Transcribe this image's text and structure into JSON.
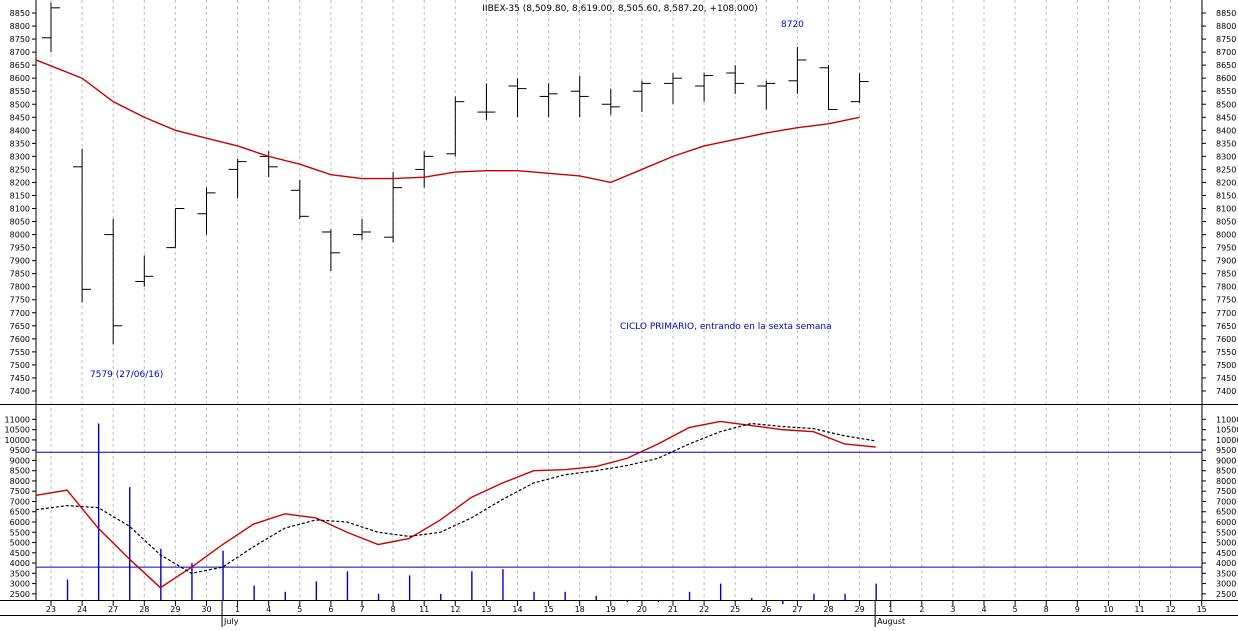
{
  "header": {
    "title": "IIBEX-35 (8,509.80, 8,619.00, 8,505.60, 8,587.20, +108.000)"
  },
  "annotations": {
    "low_label": "7579 (27/06/16)",
    "high_label": "8720",
    "cycle_label": "CICLO PRIMARIO, entrando en la sexta semana"
  },
  "colors": {
    "background": "#ffffff",
    "grid": "#bdbdbd",
    "price_bars": "#000000",
    "moving_average": "#cc0000",
    "oscillator": "#cc0000",
    "signal_line": "#000000",
    "volume": "#0000cc",
    "annotation_text": "#0000cc",
    "horizontal_levels": "#0000cc"
  },
  "chart_data": [
    {
      "type": "ohlc",
      "title": "IIBEX-35 (8,509.80, 8,619.00, 8,505.60, 8,587.20, +108.000)",
      "x_dates": [
        "23",
        "24",
        "27",
        "28",
        "29",
        "30",
        "1",
        "4",
        "5",
        "6",
        "7",
        "8",
        "11",
        "12",
        "13",
        "14",
        "15",
        "18",
        "19",
        "20",
        "21",
        "22",
        "25",
        "26",
        "27",
        "28",
        "29"
      ],
      "future_dates": [
        "1",
        "2",
        "3",
        "4",
        "5",
        "8",
        "9",
        "10",
        "11",
        "12",
        "15"
      ],
      "month_labels": [
        {
          "label": "July",
          "at_index": 6
        },
        {
          "label": "August",
          "at_index": 27
        }
      ],
      "ohlc": [
        [
          8755,
          8890,
          8700,
          8870
        ],
        [
          8260,
          8330,
          7740,
          7790
        ],
        [
          8000,
          8060,
          7579,
          7650
        ],
        [
          7820,
          7920,
          7800,
          7840
        ],
        [
          7950,
          8100,
          7950,
          8100
        ],
        [
          8080,
          8180,
          8000,
          8160
        ],
        [
          8250,
          8290,
          8140,
          8280
        ],
        [
          8300,
          8320,
          8220,
          8260
        ],
        [
          8170,
          8210,
          8060,
          8070
        ],
        [
          8010,
          8020,
          7860,
          7930
        ],
        [
          8000,
          8060,
          7980,
          8010
        ],
        [
          7990,
          8240,
          7970,
          8180
        ],
        [
          8250,
          8320,
          8180,
          8300
        ],
        [
          8310,
          8530,
          8300,
          8510
        ],
        [
          8470,
          8580,
          8440,
          8470
        ],
        [
          8570,
          8600,
          8450,
          8560
        ],
        [
          8530,
          8580,
          8450,
          8540
        ],
        [
          8550,
          8610,
          8450,
          8530
        ],
        [
          8500,
          8560,
          8460,
          8490
        ],
        [
          8550,
          8590,
          8470,
          8580
        ],
        [
          8580,
          8620,
          8500,
          8600
        ],
        [
          8570,
          8620,
          8510,
          8610
        ],
        [
          8620,
          8650,
          8540,
          8580
        ],
        [
          8570,
          8590,
          8480,
          8580
        ],
        [
          8590,
          8720,
          8540,
          8670
        ],
        [
          8640,
          8650,
          8480,
          8480
        ],
        [
          8510,
          8619,
          8505.6,
          8587.2
        ]
      ],
      "moving_average": [
        8670,
        8600,
        8510,
        8450,
        8400,
        8370,
        8340,
        8300,
        8270,
        8230,
        8215,
        8215,
        8220,
        8240,
        8245,
        8245,
        8235,
        8225,
        8200,
        8250,
        8300,
        8340,
        8365,
        8390,
        8410,
        8425,
        8450
      ],
      "yrange": [
        7350,
        8900
      ],
      "yticks": [
        7400,
        7450,
        7500,
        7550,
        7600,
        7650,
        7700,
        7750,
        7800,
        7850,
        7900,
        7950,
        8000,
        8050,
        8100,
        8150,
        8200,
        8250,
        8300,
        8350,
        8400,
        8450,
        8500,
        8550,
        8600,
        8650,
        8700,
        8750,
        8800,
        8850
      ],
      "grid": true
    },
    {
      "type": "line",
      "series": [
        {
          "values": [
            7300,
            7550,
            5700,
            4200,
            2800,
            3800,
            4900,
            5900,
            6400,
            6200,
            5500,
            4900,
            5200,
            6100,
            7200,
            7900,
            8500,
            8550,
            8700,
            9100,
            9800,
            10600,
            10900,
            10700,
            10500,
            10400,
            9800,
            9650
          ]
        },
        {
          "values": [
            6600,
            6800,
            6700,
            5800,
            4400,
            3500,
            3800,
            4800,
            5700,
            6100,
            6000,
            5500,
            5300,
            5500,
            6200,
            7100,
            7900,
            8300,
            8500,
            8750,
            9100,
            9800,
            10400,
            10800,
            10650,
            10550,
            10200,
            9950
          ]
        }
      ],
      "volume": [
        0,
        3200,
        10800,
        7700,
        4700,
        4000,
        4600,
        2900,
        2600,
        3100,
        3600,
        2500,
        3400,
        2500,
        3600,
        3700,
        2600,
        2600,
        2400,
        2100,
        2100,
        2600,
        3000,
        2300,
        2000,
        2500,
        2500,
        3000
      ],
      "levels": [
        9400,
        3800
      ],
      "yrange": [
        2200,
        11700
      ],
      "yticks": [
        2500,
        3000,
        3500,
        4000,
        4500,
        5000,
        5500,
        6000,
        6500,
        7000,
        7500,
        8000,
        8500,
        9000,
        9500,
        10000,
        10500,
        11000
      ],
      "grid": true
    }
  ]
}
